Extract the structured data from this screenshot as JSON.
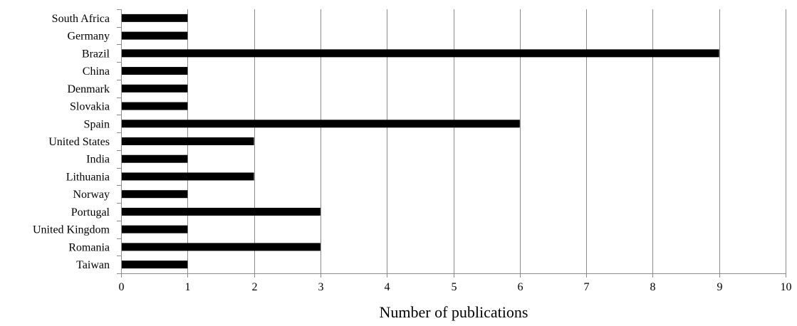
{
  "chart_data": {
    "type": "bar",
    "orientation": "horizontal",
    "categories": [
      "South Africa",
      "Germany",
      "Brazil",
      "China",
      "Denmark",
      "Slovakia",
      "Spain",
      "United States",
      "India",
      "Lithuania",
      "Norway",
      "Portugal",
      "United Kingdom",
      "Romania",
      "Taiwan"
    ],
    "values": [
      1,
      1,
      9,
      1,
      1,
      1,
      6,
      2,
      1,
      2,
      1,
      3,
      1,
      3,
      1
    ],
    "title": "",
    "xlabel": "Number of publications",
    "ylabel": "",
    "xlim": [
      0,
      10
    ],
    "x_ticks": [
      "0",
      "1",
      "2",
      "3",
      "4",
      "5",
      "6",
      "7",
      "8",
      "9",
      "10"
    ],
    "grid": "vertical",
    "legend": "none",
    "bar_color": "#000000",
    "grid_color": "#8c8c8c"
  }
}
